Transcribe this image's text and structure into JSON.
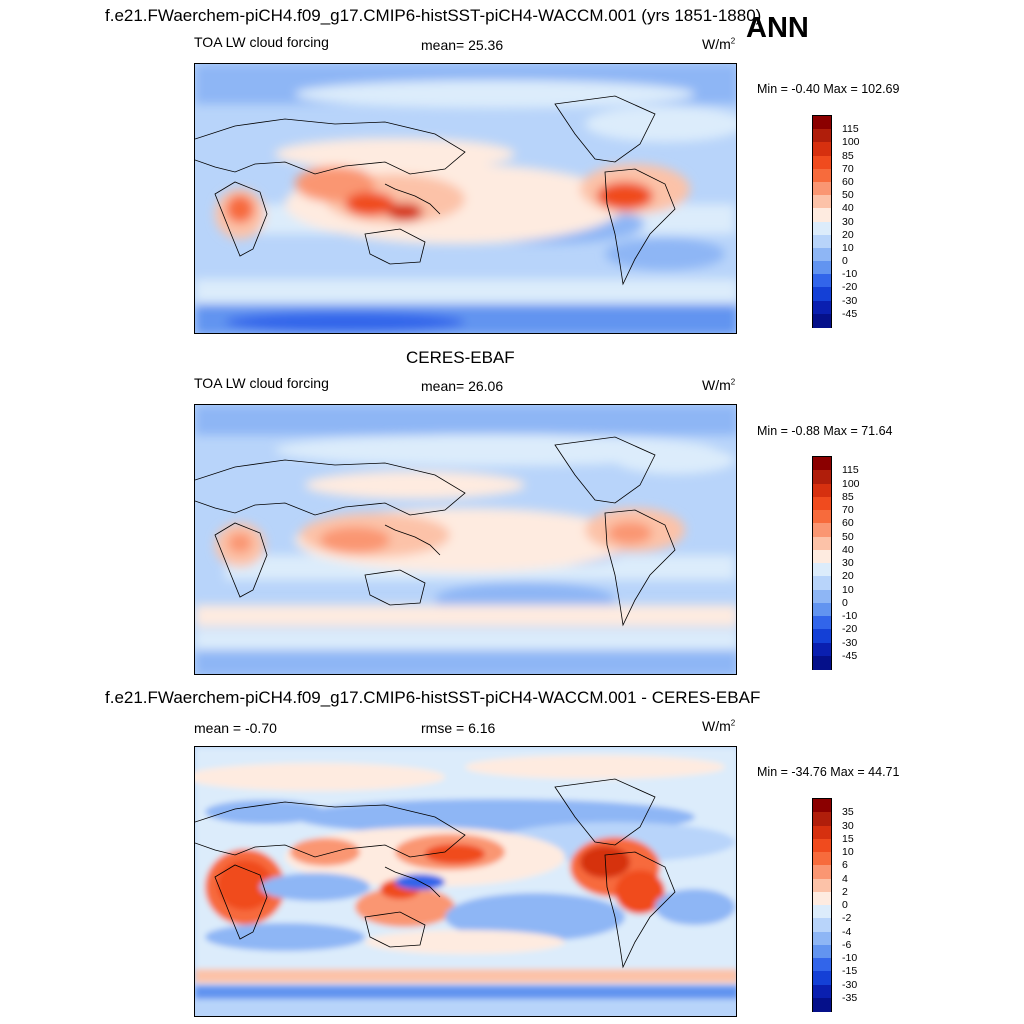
{
  "ann_label": "ANN",
  "panels": [
    {
      "title": "f.e21.FWaerchem-piCH4.f09_g17.CMIP6-histSST-piCH4-WACCM.001 (yrs 1851-1880)",
      "left_label": "TOA LW cloud forcing",
      "center_label": "mean=  25.36",
      "units_base": "W/m",
      "units_sup": "2",
      "minmax": "Min =  -0.40 Max = 102.69"
    },
    {
      "title": "CERES-EBAF",
      "left_label": "TOA LW cloud forcing",
      "center_label": "mean=  26.06",
      "units_base": "W/m",
      "units_sup": "2",
      "minmax": "Min =  -0.88 Max =  71.64"
    },
    {
      "title": "f.e21.FWaerchem-piCH4.f09_g17.CMIP6-histSST-piCH4-WACCM.001 - CERES-EBAF",
      "left_label": "mean =  -0.70",
      "center_label": "rmse =   6.16",
      "units_base": "W/m",
      "units_sup": "2",
      "minmax": "Min = -34.76 Max =  44.71"
    }
  ],
  "colorbars": {
    "abs": {
      "labels": [
        "115",
        "100",
        "85",
        "70",
        "60",
        "50",
        "40",
        "30",
        "20",
        "10",
        "0",
        "-10",
        "-20",
        "-30",
        "-45"
      ],
      "colors": [
        "#8b0000",
        "#b01e0b",
        "#d6300f",
        "#f04b1e",
        "#f76b3c",
        "#fa9672",
        "#fcc2a8",
        "#feebe0",
        "#dcecfb",
        "#b8d4fa",
        "#8eb6f5",
        "#6294f0",
        "#3265ea",
        "#1440d6",
        "#0a1fb0",
        "#05108a"
      ]
    },
    "diff": {
      "labels": [
        "35",
        "30",
        "15",
        "10",
        "6",
        "4",
        "2",
        "0",
        "-2",
        "-4",
        "-6",
        "-10",
        "-15",
        "-30",
        "-35"
      ],
      "colors": [
        "#8b0000",
        "#b01e0b",
        "#d6300f",
        "#f04b1e",
        "#f76b3c",
        "#fa9672",
        "#fcc2a8",
        "#feebe0",
        "#dcecfb",
        "#b8d4fa",
        "#8eb6f5",
        "#6294f0",
        "#3265ea",
        "#1440d6",
        "#0a1fb0",
        "#05108a"
      ]
    }
  },
  "chart_data": [
    {
      "type": "heatmap",
      "title": "f.e21.FWaerchem-piCH4.f09_g17.CMIP6-histSST-piCH4-WACCM.001 (yrs 1851-1880)",
      "variable": "TOA LW cloud forcing",
      "units": "W/m2",
      "season": "ANN",
      "mean": 25.36,
      "min": -0.4,
      "max": 102.69,
      "contour_levels": [
        -45,
        -30,
        -20,
        -10,
        0,
        10,
        20,
        30,
        40,
        50,
        60,
        70,
        85,
        100,
        115
      ]
    },
    {
      "type": "heatmap",
      "title": "CERES-EBAF",
      "variable": "TOA LW cloud forcing",
      "units": "W/m2",
      "mean": 26.06,
      "min": -0.88,
      "max": 71.64,
      "contour_levels": [
        -45,
        -30,
        -20,
        -10,
        0,
        10,
        20,
        30,
        40,
        50,
        60,
        70,
        85,
        100,
        115
      ]
    },
    {
      "type": "heatmap",
      "title": "f.e21.FWaerchem-piCH4.f09_g17.CMIP6-histSST-piCH4-WACCM.001 - CERES-EBAF",
      "units": "W/m2",
      "mean": -0.7,
      "rmse": 6.16,
      "min": -34.76,
      "max": 44.71,
      "contour_levels": [
        -35,
        -30,
        -15,
        -10,
        -6,
        -4,
        -2,
        0,
        2,
        4,
        6,
        10,
        15,
        30,
        35
      ]
    }
  ]
}
